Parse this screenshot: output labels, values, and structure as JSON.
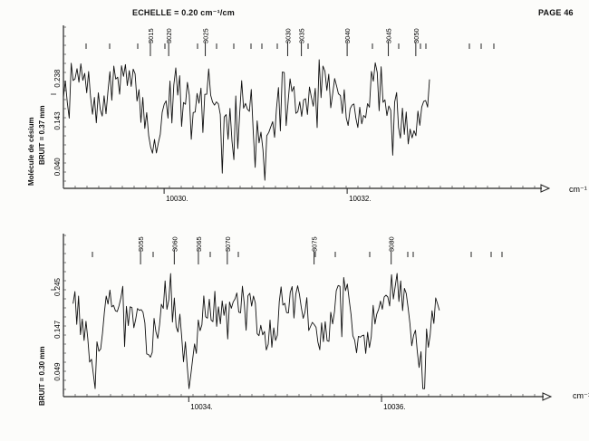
{
  "header": {
    "scale_label": "ECHELLE = 0.20 cm⁻¹/cm",
    "page_label": "PAGE 46"
  },
  "side_labels": {
    "molecule": "Molécule de césium",
    "noise_top": "BRUIT = 0.37 mm",
    "noise_bottom": "BRUIT = 0.30 mm"
  },
  "axis_unit_top": "cm⁻¹",
  "axis_unit_bottom": "cm⁻¹",
  "chart_data": [
    {
      "type": "line",
      "title": "",
      "xlabel": "cm⁻¹",
      "ylabel": "I",
      "x_tick_labels": [
        "10030.",
        "10032."
      ],
      "x_ticks": [
        10030,
        10032
      ],
      "xlim": [
        10028.9,
        10033.9
      ],
      "y_tick_labels": [
        "0.040",
        "0.143",
        "0.238"
      ],
      "y_ticks": [
        0.04,
        0.143,
        0.238
      ],
      "ylim": [
        0.0,
        0.3
      ],
      "line_numbers": [
        "3015",
        "3020",
        "3025",
        "3030",
        "3035",
        "3040",
        "3045",
        "3050"
      ],
      "line_number_x": [
        10029.85,
        10030.05,
        10030.45,
        10031.35,
        10031.5,
        10032.0,
        10032.45,
        10032.75
      ],
      "samples": 190,
      "seed": 7,
      "x": [
        10028.9,
        10029.1,
        10029.3,
        10029.5,
        10029.7,
        10029.9,
        10030.1,
        10030.3,
        10030.5,
        10030.7,
        10030.9,
        10031.1,
        10031.3,
        10031.5,
        10031.7,
        10031.9,
        10032.1,
        10032.3,
        10032.5,
        10032.7,
        10032.9
      ],
      "y": [
        0.22,
        0.24,
        0.16,
        0.25,
        0.21,
        0.08,
        0.23,
        0.19,
        0.24,
        0.12,
        0.22,
        0.05,
        0.23,
        0.16,
        0.24,
        0.2,
        0.13,
        0.25,
        0.18,
        0.1,
        0.23
      ]
    },
    {
      "type": "line",
      "title": "",
      "xlabel": "cm⁻¹",
      "ylabel": "I",
      "x_tick_labels": [
        "10034.",
        "10036."
      ],
      "x_ticks": [
        10034,
        10036
      ],
      "xlim": [
        10032.7,
        10037.4
      ],
      "y_tick_labels": [
        "0.049",
        "0.147",
        "0.245"
      ],
      "y_ticks": [
        0.049,
        0.147,
        0.245
      ],
      "ylim": [
        0.0,
        0.31
      ],
      "line_numbers": [
        "3055",
        "3060",
        "3065",
        "3070",
        "3075",
        "3080"
      ],
      "line_number_x": [
        10033.5,
        10033.85,
        10034.1,
        10034.4,
        10035.3,
        10036.1
      ],
      "samples": 200,
      "seed": 13,
      "x": [
        10032.8,
        10033.0,
        10033.2,
        10033.4,
        10033.6,
        10033.8,
        10034.0,
        10034.2,
        10034.4,
        10034.6,
        10034.8,
        10035.0,
        10035.2,
        10035.4,
        10035.6,
        10035.8,
        10036.0,
        10036.2,
        10036.4,
        10036.6
      ],
      "y": [
        0.23,
        0.07,
        0.24,
        0.18,
        0.12,
        0.25,
        0.05,
        0.22,
        0.16,
        0.24,
        0.1,
        0.23,
        0.2,
        0.13,
        0.25,
        0.09,
        0.22,
        0.24,
        0.06,
        0.21
      ]
    }
  ]
}
